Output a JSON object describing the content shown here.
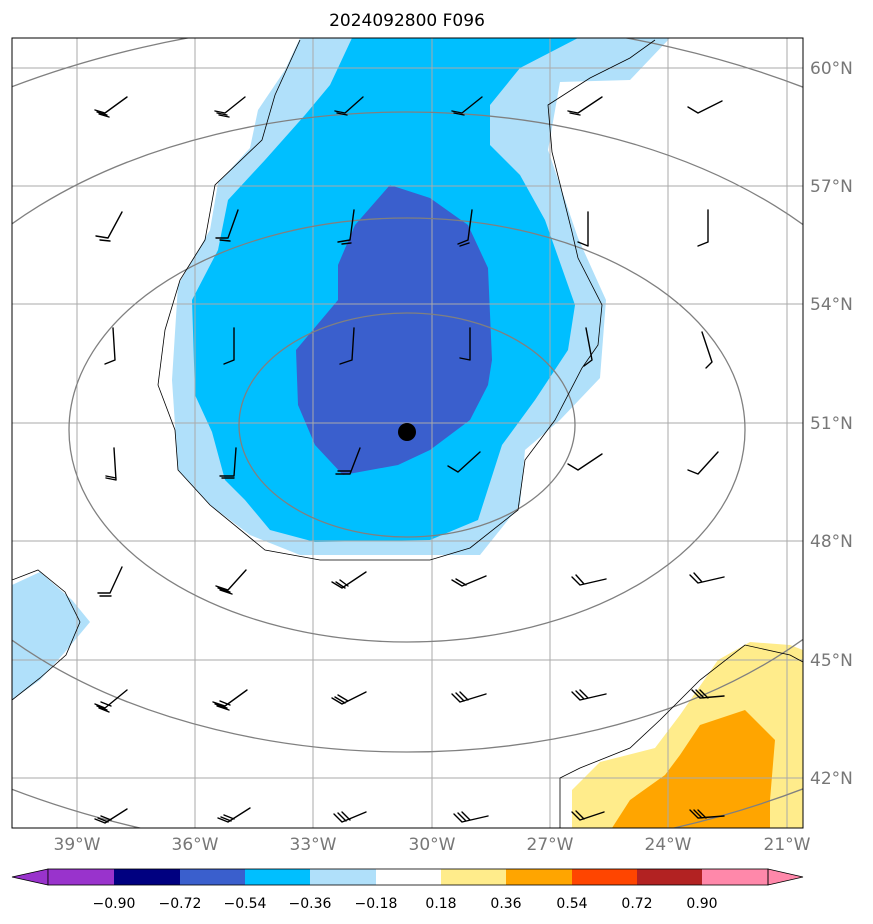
{
  "title": "2024092800 F096",
  "map": {
    "lat_ticks": [
      {
        "value": 60,
        "label": "60°N"
      },
      {
        "value": 57,
        "label": "57°N"
      },
      {
        "value": 54,
        "label": "54°N"
      },
      {
        "value": 51,
        "label": "51°N"
      },
      {
        "value": 48,
        "label": "48°N"
      },
      {
        "value": 45,
        "label": "45°N"
      },
      {
        "value": 42,
        "label": "42°N"
      }
    ],
    "lon_ticks": [
      {
        "value": -39,
        "label": "39°W"
      },
      {
        "value": -36,
        "label": "36°W"
      },
      {
        "value": -33,
        "label": "33°W"
      },
      {
        "value": -30,
        "label": "30°W"
      },
      {
        "value": -27,
        "label": "27°W"
      },
      {
        "value": -24,
        "label": "24°W"
      },
      {
        "value": -21,
        "label": "21°W"
      }
    ],
    "center_marker": {
      "lat": 50.8,
      "lon": -30.6
    },
    "grid": true
  },
  "colorbar": {
    "labels": [
      "−0.90",
      "−0.72",
      "−0.54",
      "−0.36",
      "−0.18",
      "0.18",
      "0.36",
      "0.54",
      "0.72",
      "0.90"
    ],
    "colors": {
      "under": "#9933cc",
      "bins": [
        "#000080",
        "#3a5fcd",
        "#00bfff",
        "#b0e0fa",
        "#ffffff",
        "#ffec8b",
        "#ffa500",
        "#ff4500",
        "#b22222"
      ],
      "over": "#ff88aa"
    }
  },
  "colors": {
    "grid": "#aaaaaa",
    "isobar": "#808080",
    "outline": "#000000"
  }
}
